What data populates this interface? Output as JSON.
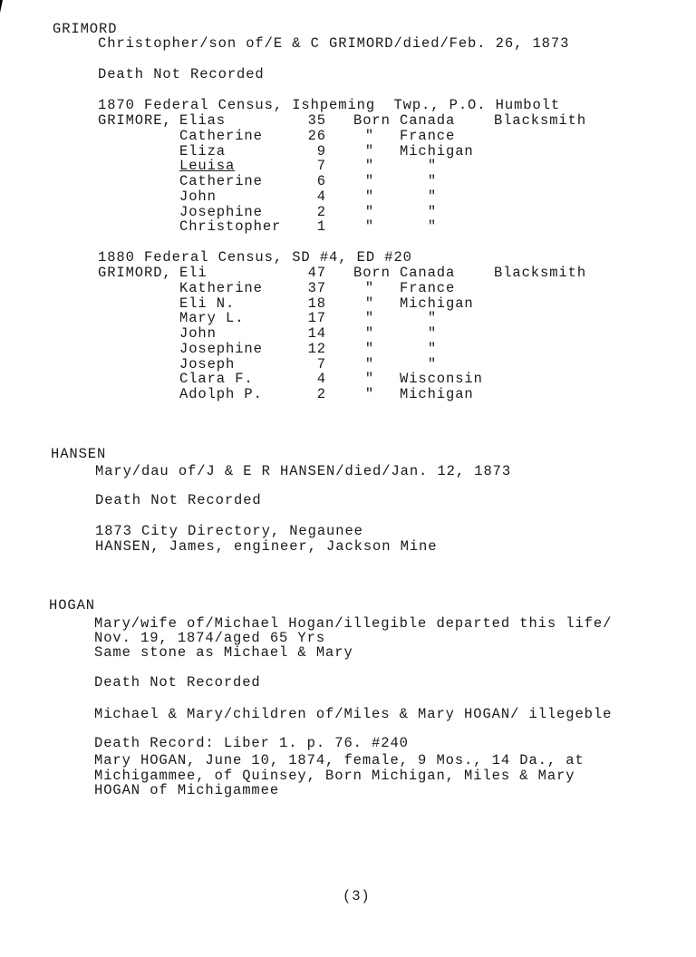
{
  "page_number": "(3)",
  "grimord": {
    "surname": "GRIMORD",
    "inscription": "Christopher/son of/E & C GRIMORD/died/Feb. 26, 1873",
    "death_status": "Death Not Recorded",
    "census_1870": {
      "heading": "1870 Federal Census, Ishpeming  Twp., P.O. Humbolt",
      "rows": [
        {
          "surname": "GRIMORE,",
          "given": "Elias",
          "age": "35",
          "born": "Born",
          "place": "Canada",
          "occupation": "Blacksmith"
        },
        {
          "surname": "",
          "given": "Catherine",
          "age": "26",
          "born": "\"",
          "place": "France",
          "occupation": ""
        },
        {
          "surname": "",
          "given": "Eliza",
          "age": "9",
          "born": "\"",
          "place": "Michigan",
          "occupation": ""
        },
        {
          "surname": "",
          "given": "Leuisa",
          "age": "7",
          "born": "\"",
          "place": "\"",
          "occupation": ""
        },
        {
          "surname": "",
          "given": "Catherine",
          "age": "6",
          "born": "\"",
          "place": "\"",
          "occupation": ""
        },
        {
          "surname": "",
          "given": "John",
          "age": "4",
          "born": "\"",
          "place": "\"",
          "occupation": ""
        },
        {
          "surname": "",
          "given": "Josephine",
          "age": "2",
          "born": "\"",
          "place": "\"",
          "occupation": ""
        },
        {
          "surname": "",
          "given": "Christopher",
          "age": "1",
          "born": "\"",
          "place": "\"",
          "occupation": ""
        }
      ]
    },
    "census_1880": {
      "heading": "1880 Federal Census, SD #4, ED #20",
      "rows": [
        {
          "surname": "GRIMORD,",
          "given": "Eli",
          "age": "47",
          "born": "Born",
          "place": "Canada",
          "occupation": "Blacksmith"
        },
        {
          "surname": "",
          "given": "Katherine",
          "age": "37",
          "born": "\"",
          "place": "France",
          "occupation": ""
        },
        {
          "surname": "",
          "given": "Eli N.",
          "age": "18",
          "born": "\"",
          "place": "Michigan",
          "occupation": ""
        },
        {
          "surname": "",
          "given": "Mary L.",
          "age": "17",
          "born": "\"",
          "place": "\"",
          "occupation": ""
        },
        {
          "surname": "",
          "given": "John",
          "age": "14",
          "born": "\"",
          "place": "\"",
          "occupation": ""
        },
        {
          "surname": "",
          "given": "Josephine",
          "age": "12",
          "born": "\"",
          "place": "\"",
          "occupation": ""
        },
        {
          "surname": "",
          "given": "Joseph",
          "age": "7",
          "born": "\"",
          "place": "\"",
          "occupation": ""
        },
        {
          "surname": "",
          "given": "Clara F.",
          "age": "4",
          "born": "\"",
          "place": "Wisconsin",
          "occupation": ""
        },
        {
          "surname": "",
          "given": "Adolph P.",
          "age": "2",
          "born": "\"",
          "place": "Michigan",
          "occupation": ""
        }
      ]
    }
  },
  "hansen": {
    "surname": "HANSEN",
    "inscription": "Mary/dau of/J & E R HANSEN/died/Jan. 12, 1873",
    "death_status": "Death Not Recorded",
    "directory_heading": "1873 City Directory, Negaunee",
    "directory_entry": "HANSEN, James, engineer, Jackson Mine"
  },
  "hogan": {
    "surname": "HOGAN",
    "inscription_lines": [
      "Mary/wife of/Michael Hogan/illegible departed this life/",
      "Nov. 19, 1874/aged 65 Yrs",
      "Same stone as Michael & Mary"
    ],
    "death_status": "Death Not Recorded",
    "children_inscription": "Michael & Mary/children of/Miles & Mary HOGAN/ illegeble",
    "death_record_heading": "Death Record: Liber 1. p. 76. #240",
    "death_record_lines": [
      "Mary HOGAN, June 10, 1874, female, 9 Mos., 14 Da., at",
      "Michigammee, of Quinsey, Born Michigan, Miles & Mary",
      "HOGAN of Michigammee"
    ]
  }
}
